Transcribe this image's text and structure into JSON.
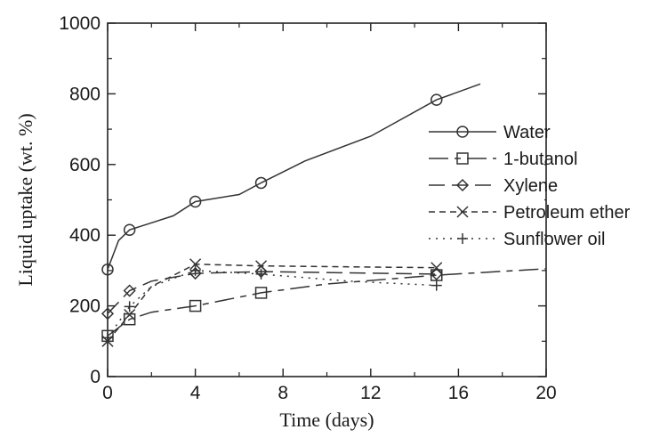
{
  "chart_data": {
    "type": "line",
    "xlabel": "Time (days)",
    "ylabel": "Liquid uptake (wt. %)",
    "xlim": [
      0,
      20
    ],
    "ylim": [
      0,
      1000
    ],
    "x_ticks": [
      0,
      4,
      8,
      12,
      16,
      20
    ],
    "y_ticks": [
      0,
      200,
      400,
      600,
      800,
      1000
    ],
    "grid": false,
    "legend_position": "right",
    "series": [
      {
        "name": "Water",
        "marker": "circle",
        "dash": "solid",
        "points": [
          [
            0,
            303
          ],
          [
            1,
            415
          ],
          [
            4,
            495
          ],
          [
            7,
            548
          ],
          [
            15,
            783
          ]
        ],
        "curve": [
          [
            0,
            303
          ],
          [
            0.5,
            385
          ],
          [
            1,
            415
          ],
          [
            2,
            435
          ],
          [
            3,
            455
          ],
          [
            4,
            495
          ],
          [
            6,
            515
          ],
          [
            7,
            548
          ],
          [
            9,
            610
          ],
          [
            12,
            680
          ],
          [
            15,
            783
          ],
          [
            17,
            828
          ]
        ]
      },
      {
        "name": "1-butanol",
        "marker": "square",
        "dash": "longdash-solid",
        "points": [
          [
            0,
            115
          ],
          [
            1,
            162
          ],
          [
            4,
            200
          ],
          [
            7,
            237
          ],
          [
            15,
            287
          ]
        ],
        "curve": [
          [
            0,
            115
          ],
          [
            1,
            162
          ],
          [
            2,
            182
          ],
          [
            4,
            200
          ],
          [
            7,
            237
          ],
          [
            10,
            262
          ],
          [
            15,
            287
          ],
          [
            20,
            305
          ]
        ]
      },
      {
        "name": "Xylene",
        "marker": "diamond",
        "dash": "longdash",
        "points": [
          [
            0,
            178
          ],
          [
            1,
            243
          ],
          [
            4,
            292
          ],
          [
            7,
            297
          ],
          [
            15,
            290
          ]
        ],
        "curve": [
          [
            0,
            178
          ],
          [
            1,
            243
          ],
          [
            2,
            270
          ],
          [
            4,
            292
          ],
          [
            7,
            297
          ],
          [
            15,
            290
          ]
        ]
      },
      {
        "name": "Petroleum ether",
        "marker": "x",
        "dash": "shortdash",
        "points": [
          [
            0,
            100
          ],
          [
            1,
            175
          ],
          [
            4,
            318
          ],
          [
            7,
            313
          ],
          [
            15,
            308
          ]
        ],
        "curve": [
          [
            0,
            100
          ],
          [
            1,
            175
          ],
          [
            2,
            255
          ],
          [
            4,
            318
          ],
          [
            7,
            313
          ],
          [
            15,
            308
          ]
        ]
      },
      {
        "name": "Sunflower oil",
        "marker": "plus",
        "dash": "dotted",
        "points": [
          [
            0,
            110
          ],
          [
            1,
            198
          ],
          [
            4,
            300
          ],
          [
            7,
            290
          ],
          [
            15,
            258
          ]
        ],
        "curve": [
          [
            0,
            110
          ],
          [
            1,
            198
          ],
          [
            2,
            255
          ],
          [
            4,
            300
          ],
          [
            7,
            290
          ],
          [
            11,
            270
          ],
          [
            15,
            258
          ]
        ]
      }
    ]
  }
}
